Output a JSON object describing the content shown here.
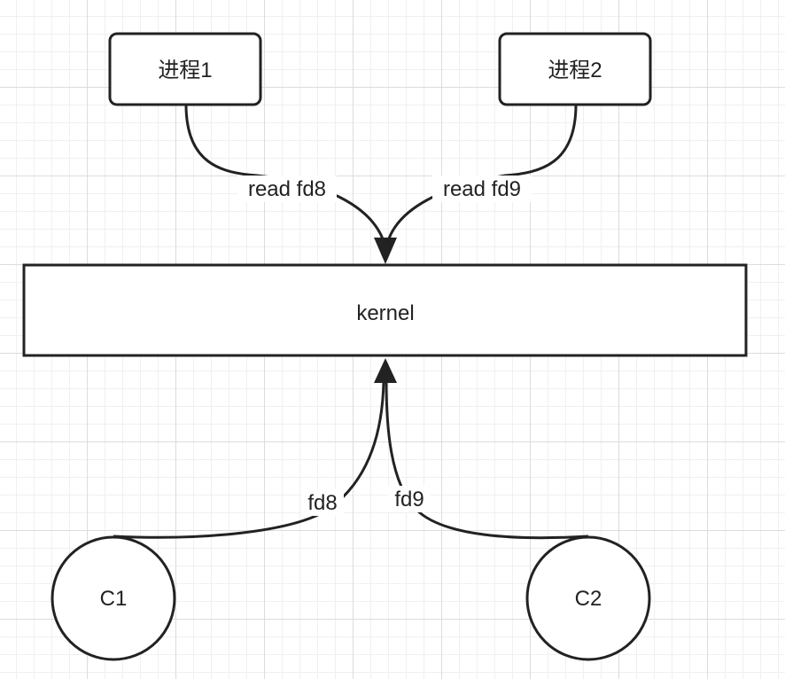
{
  "nodes": {
    "process1": {
      "label": "进程1"
    },
    "process2": {
      "label": "进程2"
    },
    "kernel": {
      "label": "kernel"
    },
    "c1": {
      "label": "C1"
    },
    "c2": {
      "label": "C2"
    }
  },
  "edges": {
    "process1_to_kernel": {
      "label": "read fd8"
    },
    "process2_to_kernel": {
      "label": "read fd9"
    },
    "c1_to_kernel": {
      "label": "fd8"
    },
    "c2_to_kernel": {
      "label": "fd9"
    }
  },
  "colors": {
    "stroke": "#222222",
    "fill": "#ffffff",
    "grid": "#dcdcdc"
  }
}
